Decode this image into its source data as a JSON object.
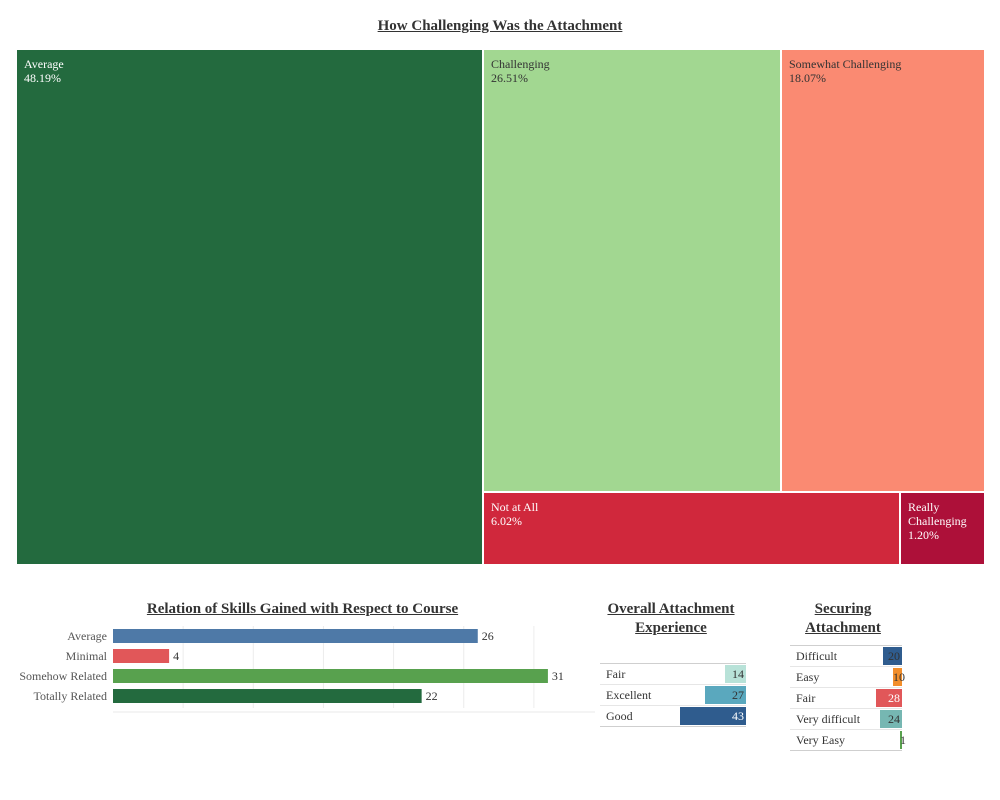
{
  "chart_data": [
    {
      "type": "treemap",
      "title": "How Challenging Was the Attachment",
      "items": [
        {
          "label": "Average",
          "value_label": "48.19%",
          "value": 48.19,
          "color": "#236a3e",
          "text_color": "#ffffff"
        },
        {
          "label": "Challenging",
          "value_label": "26.51%",
          "value": 26.51,
          "color": "#a2d791",
          "text_color": "#333333"
        },
        {
          "label": "Somewhat Challenging",
          "value_label": "18.07%",
          "value": 18.07,
          "color": "#fa8a72",
          "text_color": "#333333"
        },
        {
          "label": "Not at All",
          "value_label": "6.02%",
          "value": 6.02,
          "color": "#d0283c",
          "text_color": "#ffffff"
        },
        {
          "label": "Really Challenging",
          "value_label": "1.20%",
          "value": 1.2,
          "color": "#ad1039",
          "text_color": "#ffffff"
        }
      ]
    },
    {
      "type": "bar",
      "orientation": "horizontal",
      "title": "Relation of Skills Gained with Respect to Course",
      "categories": [
        "Average",
        "Minimal",
        "Somehow Related",
        "Totally Related"
      ],
      "values": [
        26,
        4,
        31,
        22
      ],
      "colors": [
        "#4e79a7",
        "#e15759",
        "#58a14e",
        "#236a3e"
      ],
      "xlim": [
        0,
        34
      ],
      "grid": true
    },
    {
      "type": "table",
      "title": "Overall Attachment Experience",
      "rows": [
        {
          "label": "Fair",
          "value": 14,
          "color": "#b8e2d8",
          "text_color": "#333333"
        },
        {
          "label": "Excellent",
          "value": 27,
          "color": "#5aa8be",
          "text_color": "#333333"
        },
        {
          "label": "Good",
          "value": 43,
          "color": "#2f5c8e",
          "text_color": "#ffffff"
        }
      ],
      "max": 43
    },
    {
      "type": "table",
      "title": "Securing Attachment",
      "rows": [
        {
          "label": "Difficult",
          "value": 20,
          "color": "#2f5c8e",
          "text_color": "#333333"
        },
        {
          "label": "Easy",
          "value": 10,
          "color": "#f28e2b",
          "text_color": "#333333"
        },
        {
          "label": "Fair",
          "value": 28,
          "color": "#e15759",
          "text_color": "#ffffff"
        },
        {
          "label": "Very difficult",
          "value": 24,
          "color": "#76b7b2",
          "text_color": "#333333"
        },
        {
          "label": "Very Easy",
          "value": 1,
          "color": "#58a14e",
          "text_color": "#333333"
        }
      ],
      "max": 28
    }
  ]
}
